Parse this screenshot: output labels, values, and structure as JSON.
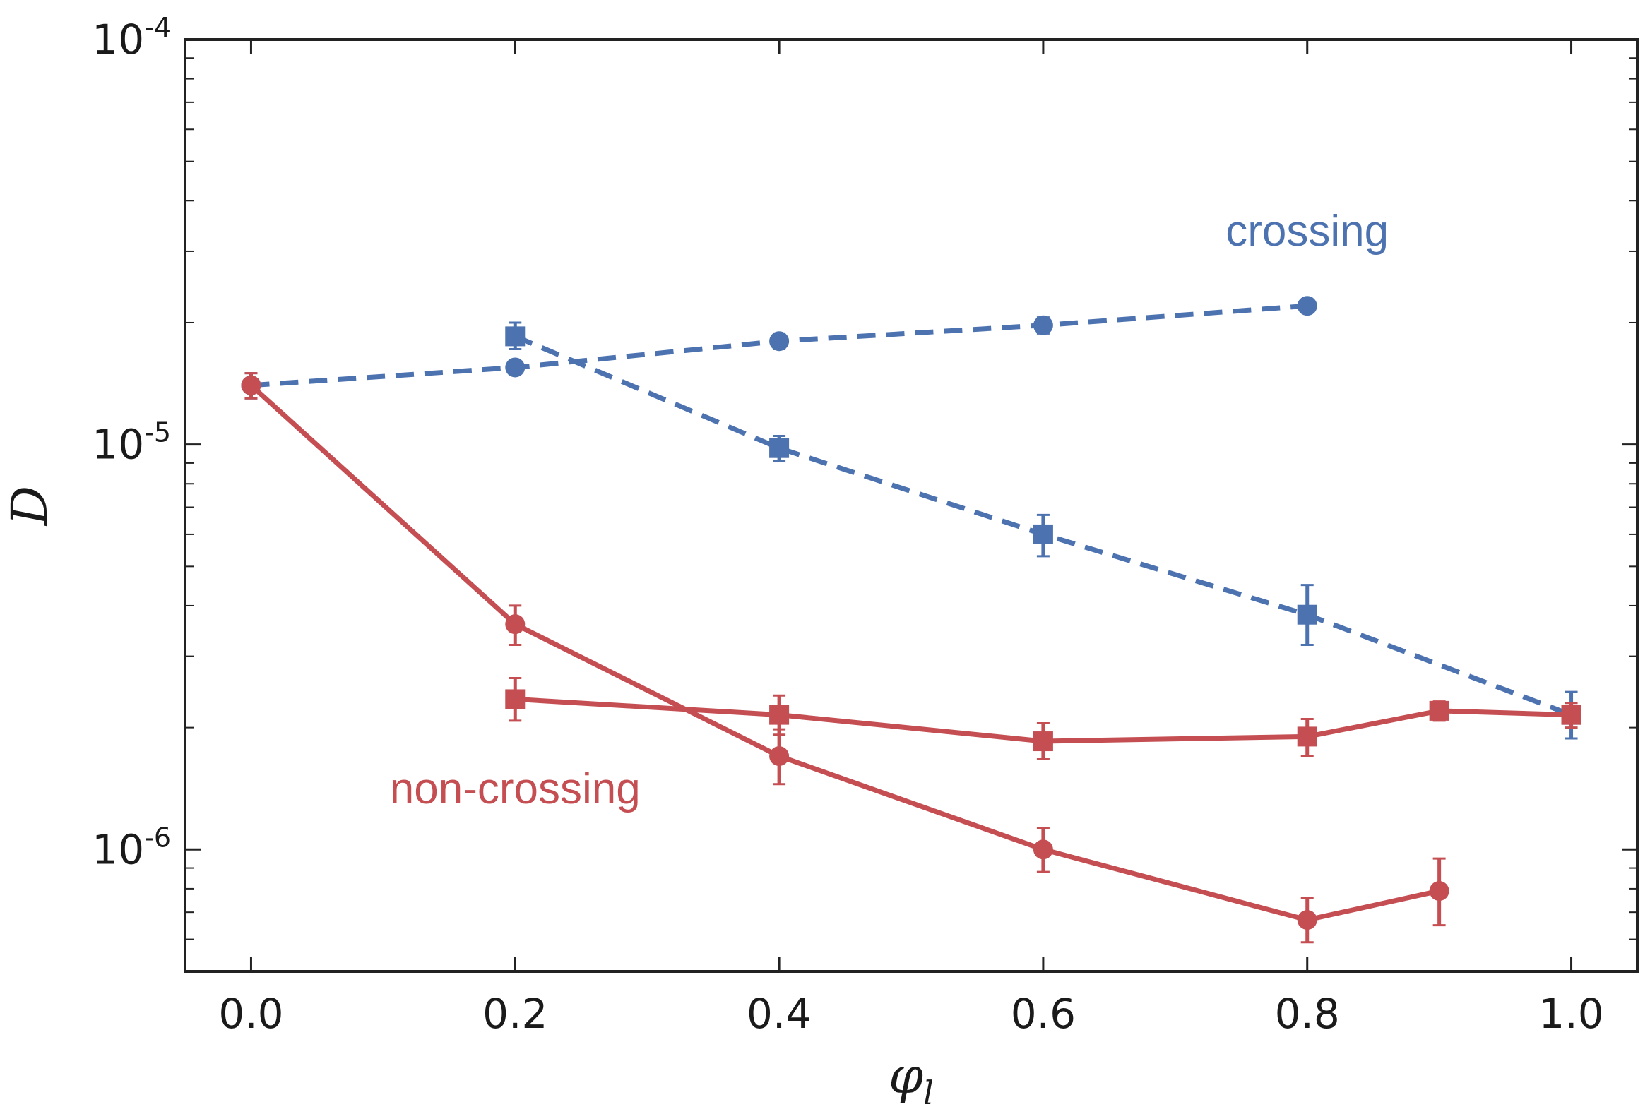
{
  "chart_data": {
    "type": "line",
    "title": "",
    "xlabel": "φ",
    "xlabel_subscript": "l",
    "ylabel": "D",
    "xscale": "linear",
    "yscale": "log",
    "xlim": [
      -0.05,
      1.05
    ],
    "ylim": [
      5e-07,
      0.0001
    ],
    "grid": false,
    "x_ticks": [
      0.0,
      0.2,
      0.4,
      0.6,
      0.8,
      1.0
    ],
    "x_tick_labels": [
      "0.0",
      "0.2",
      "0.4",
      "0.6",
      "0.8",
      "1.0"
    ],
    "y_ticks": [
      {
        "value": 1e-06,
        "base": "10",
        "exp": "-6"
      },
      {
        "value": 1e-05,
        "base": "10",
        "exp": "-5"
      },
      {
        "value": 0.0001,
        "base": "10",
        "exp": "-4"
      }
    ],
    "series": [
      {
        "name": "crossing-circles",
        "group": "crossing",
        "color": "#4c72b0",
        "linestyle": "dashed",
        "marker": "circle",
        "x": [
          0.0,
          0.2,
          0.4,
          0.6,
          0.8
        ],
        "y": [
          1.4e-05,
          1.55e-05,
          1.8e-05,
          1.97e-05,
          2.2e-05
        ],
        "yerr_low": [
          1.3e-05,
          1.5e-05,
          1.72e-05,
          1.88e-05,
          2.12e-05
        ],
        "yerr_high": [
          1.5e-05,
          1.6e-05,
          1.88e-05,
          2.06e-05,
          2.28e-05
        ]
      },
      {
        "name": "crossing-squares",
        "group": "crossing",
        "color": "#4c72b0",
        "linestyle": "dashed",
        "marker": "square",
        "x": [
          0.2,
          0.4,
          0.6,
          0.8,
          1.0
        ],
        "y": [
          1.85e-05,
          9.8e-06,
          6e-06,
          3.8e-06,
          2.15e-06
        ],
        "yerr_low": [
          1.72e-05,
          9.1e-06,
          5.3e-06,
          3.2e-06,
          1.88e-06
        ],
        "yerr_high": [
          2e-05,
          1.05e-05,
          6.7e-06,
          4.5e-06,
          2.45e-06
        ]
      },
      {
        "name": "non-crossing-circles",
        "group": "non-crossing",
        "color": "#c44e52",
        "linestyle": "solid",
        "marker": "circle",
        "x": [
          0.0,
          0.2,
          0.4,
          0.6,
          0.8,
          0.9
        ],
        "y": [
          1.4e-05,
          3.6e-06,
          1.7e-06,
          1e-06,
          6.7e-07,
          7.9e-07
        ],
        "yerr_low": [
          1.3e-05,
          3.2e-06,
          1.45e-06,
          8.8e-07,
          5.9e-07,
          6.5e-07
        ],
        "yerr_high": [
          1.5e-05,
          4e-06,
          1.98e-06,
          1.13e-06,
          7.6e-07,
          9.5e-07
        ]
      },
      {
        "name": "non-crossing-squares",
        "group": "non-crossing",
        "color": "#c44e52",
        "linestyle": "solid",
        "marker": "square",
        "x": [
          0.2,
          0.4,
          0.6,
          0.8,
          0.9,
          1.0
        ],
        "y": [
          2.35e-06,
          2.15e-06,
          1.85e-06,
          1.9e-06,
          2.2e-06,
          2.15e-06
        ],
        "yerr_low": [
          2.08e-06,
          1.92e-06,
          1.67e-06,
          1.7e-06,
          2.08e-06,
          2e-06
        ],
        "yerr_high": [
          2.65e-06,
          2.4e-06,
          2.05e-06,
          2.1e-06,
          2.32e-06,
          2.3e-06
        ]
      }
    ],
    "annotations": [
      {
        "text": "crossing",
        "color": "#4c72b0",
        "x": 0.8,
        "y": 3.1e-05
      },
      {
        "text": "non-crossing",
        "color": "#c44e52",
        "x": 0.2,
        "y": 1.3e-06
      }
    ]
  }
}
